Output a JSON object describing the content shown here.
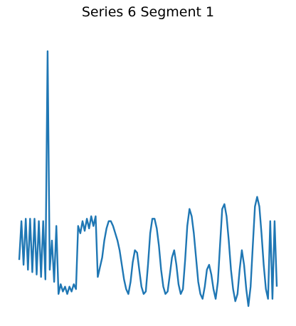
{
  "chart_data": {
    "type": "line",
    "title": "Series 6 Segment 1",
    "axes_visible": false,
    "grid": false,
    "legend": "none",
    "color": "#1f77b4",
    "series": [
      {
        "points": [
          [
            0.0,
            0.14
          ],
          [
            0.5,
            0.3
          ],
          [
            1.0,
            0.12
          ],
          [
            1.5,
            0.31
          ],
          [
            2.0,
            0.1
          ],
          [
            2.5,
            0.31
          ],
          [
            3.0,
            0.09
          ],
          [
            3.5,
            0.31
          ],
          [
            4.0,
            0.08
          ],
          [
            4.5,
            0.3
          ],
          [
            5.0,
            0.07
          ],
          [
            5.5,
            0.3
          ],
          [
            6.0,
            0.06
          ],
          [
            6.5,
            1.0
          ],
          [
            7.0,
            0.1
          ],
          [
            7.5,
            0.22
          ],
          [
            8.0,
            0.05
          ],
          [
            8.5,
            0.28
          ],
          [
            9.0,
            0.0
          ],
          [
            9.5,
            0.04
          ],
          [
            10.0,
            0.01
          ],
          [
            10.5,
            0.03
          ],
          [
            11.0,
            0.0
          ],
          [
            11.5,
            0.03
          ],
          [
            12.0,
            0.01
          ],
          [
            12.5,
            0.04
          ],
          [
            13.0,
            0.02
          ],
          [
            13.5,
            0.28
          ],
          [
            14.0,
            0.25
          ],
          [
            14.5,
            0.3
          ],
          [
            15.0,
            0.26
          ],
          [
            15.5,
            0.31
          ],
          [
            16.0,
            0.27
          ],
          [
            16.5,
            0.32
          ],
          [
            17.0,
            0.28
          ],
          [
            17.5,
            0.32
          ],
          [
            18.0,
            0.07
          ],
          [
            18.5,
            0.11
          ],
          [
            19.0,
            0.15
          ],
          [
            19.5,
            0.22
          ],
          [
            20.0,
            0.27
          ],
          [
            20.5,
            0.3
          ],
          [
            21.0,
            0.3
          ],
          [
            21.5,
            0.28
          ],
          [
            22.0,
            0.25
          ],
          [
            22.5,
            0.22
          ],
          [
            23.0,
            0.18
          ],
          [
            23.5,
            0.12
          ],
          [
            24.0,
            0.06
          ],
          [
            24.5,
            0.02
          ],
          [
            25.0,
            0.0
          ],
          [
            25.5,
            0.05
          ],
          [
            26.0,
            0.13
          ],
          [
            26.5,
            0.18
          ],
          [
            27.0,
            0.17
          ],
          [
            27.5,
            0.1
          ],
          [
            28.0,
            0.03
          ],
          [
            28.5,
            0.0
          ],
          [
            29.0,
            0.01
          ],
          [
            29.5,
            0.12
          ],
          [
            30.0,
            0.25
          ],
          [
            30.5,
            0.31
          ],
          [
            31.0,
            0.31
          ],
          [
            31.5,
            0.27
          ],
          [
            32.0,
            0.2
          ],
          [
            32.5,
            0.1
          ],
          [
            33.0,
            0.03
          ],
          [
            33.5,
            0.0
          ],
          [
            34.0,
            0.01
          ],
          [
            34.5,
            0.08
          ],
          [
            35.0,
            0.15
          ],
          [
            35.5,
            0.18
          ],
          [
            36.0,
            0.12
          ],
          [
            36.5,
            0.04
          ],
          [
            37.0,
            0.0
          ],
          [
            37.5,
            0.02
          ],
          [
            38.0,
            0.14
          ],
          [
            38.5,
            0.28
          ],
          [
            39.0,
            0.35
          ],
          [
            39.5,
            0.32
          ],
          [
            40.0,
            0.25
          ],
          [
            40.5,
            0.15
          ],
          [
            41.0,
            0.05
          ],
          [
            41.5,
            0.0
          ],
          [
            42.0,
            -0.02
          ],
          [
            42.5,
            0.03
          ],
          [
            43.0,
            0.1
          ],
          [
            43.5,
            0.12
          ],
          [
            44.0,
            0.08
          ],
          [
            44.5,
            0.02
          ],
          [
            45.0,
            -0.02
          ],
          [
            45.5,
            0.05
          ],
          [
            46.0,
            0.2
          ],
          [
            46.5,
            0.35
          ],
          [
            47.0,
            0.37
          ],
          [
            47.5,
            0.32
          ],
          [
            48.0,
            0.22
          ],
          [
            48.5,
            0.1
          ],
          [
            49.0,
            0.02
          ],
          [
            49.5,
            -0.03
          ],
          [
            50.0,
            0.0
          ],
          [
            50.5,
            0.1
          ],
          [
            51.0,
            0.18
          ],
          [
            51.5,
            0.12
          ],
          [
            52.0,
            0.02
          ],
          [
            52.5,
            -0.05
          ],
          [
            53.0,
            0.03
          ],
          [
            53.5,
            0.2
          ],
          [
            54.0,
            0.36
          ],
          [
            54.5,
            0.4
          ],
          [
            55.0,
            0.36
          ],
          [
            55.5,
            0.25
          ],
          [
            56.0,
            0.12
          ],
          [
            56.5,
            0.02
          ],
          [
            57.0,
            -0.02
          ],
          [
            57.5,
            0.3
          ],
          [
            58.0,
            -0.02
          ],
          [
            58.5,
            0.3
          ],
          [
            59.0,
            0.03
          ]
        ]
      }
    ]
  }
}
